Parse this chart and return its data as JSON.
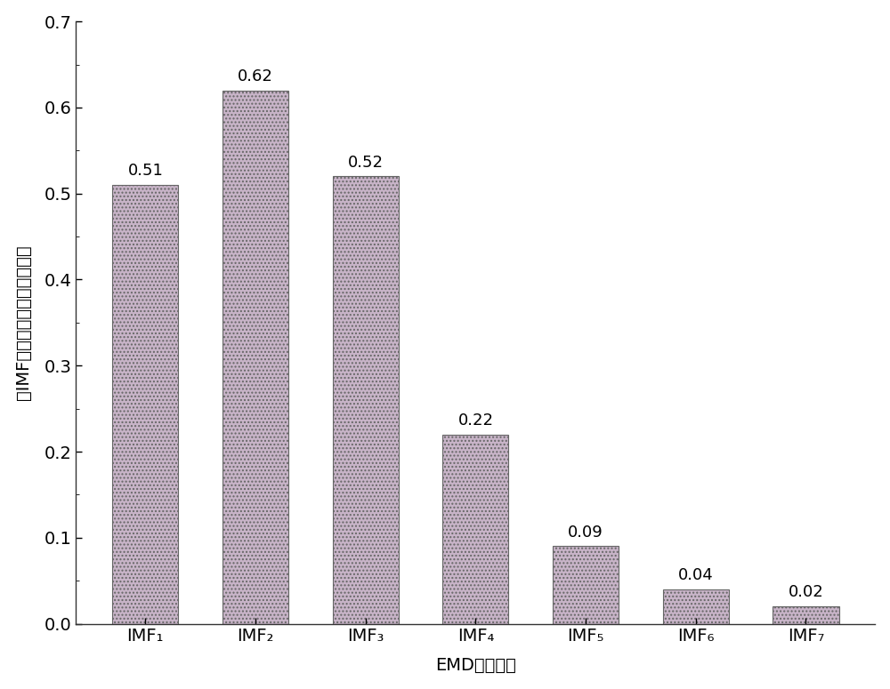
{
  "categories": [
    "IMF₁",
    "IMF₂",
    "IMF₃",
    "IMF₄",
    "IMF₅",
    "IMF₆",
    "IMF₇"
  ],
  "values": [
    0.51,
    0.62,
    0.52,
    0.22,
    0.09,
    0.04,
    0.02
  ],
  "bar_color": "#c8b4c8",
  "bar_edge_color": "#888888",
  "ylabel": "各IMF与归一化信号的相关系数",
  "xlabel": "EMD分解阶次",
  "ylim": [
    0,
    0.7
  ],
  "yticks": [
    0.0,
    0.1,
    0.2,
    0.3,
    0.4,
    0.5,
    0.6,
    0.7
  ],
  "ytick_labels": [
    "0.0",
    "0.1",
    "0.2",
    "0.3",
    "0.4",
    "0.5",
    "0.6",
    "0.7"
  ],
  "value_labels": [
    "0.51",
    "0.62",
    "0.52",
    "0.22",
    "0.09",
    "0.04",
    "0.02"
  ],
  "background_color": "#ffffff",
  "label_fontsize": 14,
  "tick_fontsize": 14,
  "value_fontsize": 13
}
